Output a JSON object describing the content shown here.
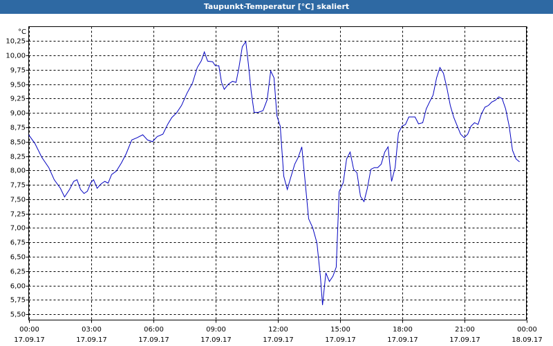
{
  "chart_data": {
    "type": "line",
    "title": "Taupunkt-Temperatur [°C] skaliert",
    "y_label": "°C",
    "x": [
      0,
      0.3,
      0.63,
      0.97,
      1.23,
      1.53,
      1.73,
      1.97,
      2.17,
      2.33,
      2.5,
      2.67,
      2.83,
      3,
      3.13,
      3.3,
      3.5,
      3.67,
      3.83,
      4,
      4.23,
      4.47,
      4.7,
      4.97,
      5.23,
      5.5,
      5.73,
      5.97,
      6.2,
      6.47,
      6.7,
      6.9,
      7.13,
      7.37,
      7.63,
      7.9,
      8.13,
      8.33,
      8.47,
      8.63,
      8.87,
      9,
      9.17,
      9.3,
      9.43,
      9.63,
      9.83,
      10,
      10.13,
      10.3,
      10.47,
      10.6,
      10.73,
      10.87,
      11.07,
      11.3,
      11.5,
      11.67,
      11.83,
      11.97,
      12.13,
      12.3,
      12.47,
      12.63,
      12.83,
      13,
      13.17,
      13.33,
      13.5,
      13.7,
      13.9,
      14.07,
      14.17,
      14.33,
      14.5,
      14.67,
      14.83,
      14.97,
      15.17,
      15.33,
      15.5,
      15.67,
      15.83,
      16,
      16.17,
      16.33,
      16.5,
      16.67,
      16.83,
      17,
      17.17,
      17.33,
      17.5,
      17.67,
      17.83,
      18,
      18.17,
      18.33,
      18.63,
      18.8,
      19,
      19.17,
      19.33,
      19.5,
      19.67,
      19.83,
      20,
      20.17,
      20.33,
      20.5,
      20.67,
      20.83,
      21,
      21.17,
      21.33,
      21.5,
      21.67,
      21.83,
      22,
      22.17,
      22.33,
      22.5,
      22.67,
      22.83,
      23,
      23.17,
      23.33,
      23.5,
      23.67
    ],
    "series": [
      {
        "color": "#0000c0",
        "values": [
          8.62,
          8.47,
          8.23,
          8.05,
          7.84,
          7.69,
          7.54,
          7.67,
          7.81,
          7.84,
          7.67,
          7.6,
          7.64,
          7.79,
          7.84,
          7.69,
          7.77,
          7.81,
          7.78,
          7.93,
          7.99,
          8.13,
          8.29,
          8.53,
          8.57,
          8.62,
          8.53,
          8.5,
          8.59,
          8.63,
          8.8,
          8.92,
          9,
          9.13,
          9.34,
          9.52,
          9.79,
          9.91,
          10.06,
          9.9,
          9.89,
          9.82,
          9.82,
          9.53,
          9.41,
          9.5,
          9.55,
          9.53,
          9.77,
          10.15,
          10.24,
          9.83,
          9.37,
          9.01,
          9.01,
          9.04,
          9.23,
          9.73,
          9.61,
          8.95,
          8.77,
          7.9,
          7.67,
          7.87,
          8.11,
          8.23,
          8.41,
          7.81,
          7.16,
          7,
          6.74,
          6.14,
          5.66,
          6.22,
          6.07,
          6.16,
          6.32,
          7.63,
          7.79,
          8.2,
          8.32,
          8.02,
          7.96,
          7.55,
          7.46,
          7.69,
          8.02,
          8.05,
          8.05,
          8.11,
          8.32,
          8.41,
          7.81,
          8.05,
          8.65,
          8.77,
          8.8,
          8.93,
          8.93,
          8.81,
          8.83,
          9.07,
          9.19,
          9.31,
          9.61,
          9.79,
          9.69,
          9.43,
          9.13,
          8.92,
          8.77,
          8.63,
          8.57,
          8.63,
          8.77,
          8.83,
          8.8,
          8.98,
          9.1,
          9.13,
          9.19,
          9.22,
          9.28,
          9.25,
          9.07,
          8.77,
          8.35,
          8.2,
          8.15
        ]
      }
    ],
    "xlim": [
      0,
      24
    ],
    "xticks": [
      {
        "value": 0,
        "label": "00:00",
        "date": "17.09.17"
      },
      {
        "value": 3,
        "label": "03:00",
        "date": "17.09.17"
      },
      {
        "value": 6,
        "label": "06:00",
        "date": "17.09.17"
      },
      {
        "value": 9,
        "label": "09:00",
        "date": "17.09.17"
      },
      {
        "value": 12,
        "label": "12:00",
        "date": "17.09.17"
      },
      {
        "value": 15,
        "label": "15:00",
        "date": "17.09.17"
      },
      {
        "value": 18,
        "label": "18:00",
        "date": "17.09.17"
      },
      {
        "value": 21,
        "label": "21:00",
        "date": "17.09.17"
      },
      {
        "value": 24,
        "label": "00:00",
        "date": "18.09.17"
      }
    ],
    "ylim": [
      5.4,
      10.5
    ],
    "yticks": [
      {
        "value": 5.5,
        "label": "5,50"
      },
      {
        "value": 5.75,
        "label": "5,75"
      },
      {
        "value": 6,
        "label": "6,00"
      },
      {
        "value": 6.25,
        "label": "6,25"
      },
      {
        "value": 6.5,
        "label": "6,50"
      },
      {
        "value": 6.75,
        "label": "6,75"
      },
      {
        "value": 7,
        "label": "7,00"
      },
      {
        "value": 7.25,
        "label": "7,25"
      },
      {
        "value": 7.5,
        "label": "7,50"
      },
      {
        "value": 7.75,
        "label": "7,75"
      },
      {
        "value": 8,
        "label": "8,00"
      },
      {
        "value": 8.25,
        "label": "8,25"
      },
      {
        "value": 8.5,
        "label": "8,50"
      },
      {
        "value": 8.75,
        "label": "8,75"
      },
      {
        "value": 9,
        "label": "9,00"
      },
      {
        "value": 9.25,
        "label": "9,25"
      },
      {
        "value": 9.5,
        "label": "9,50"
      },
      {
        "value": 9.75,
        "label": "9,75"
      },
      {
        "value": 10,
        "label": "10,00"
      },
      {
        "value": 10.25,
        "label": "10,25"
      }
    ],
    "grid": true
  }
}
